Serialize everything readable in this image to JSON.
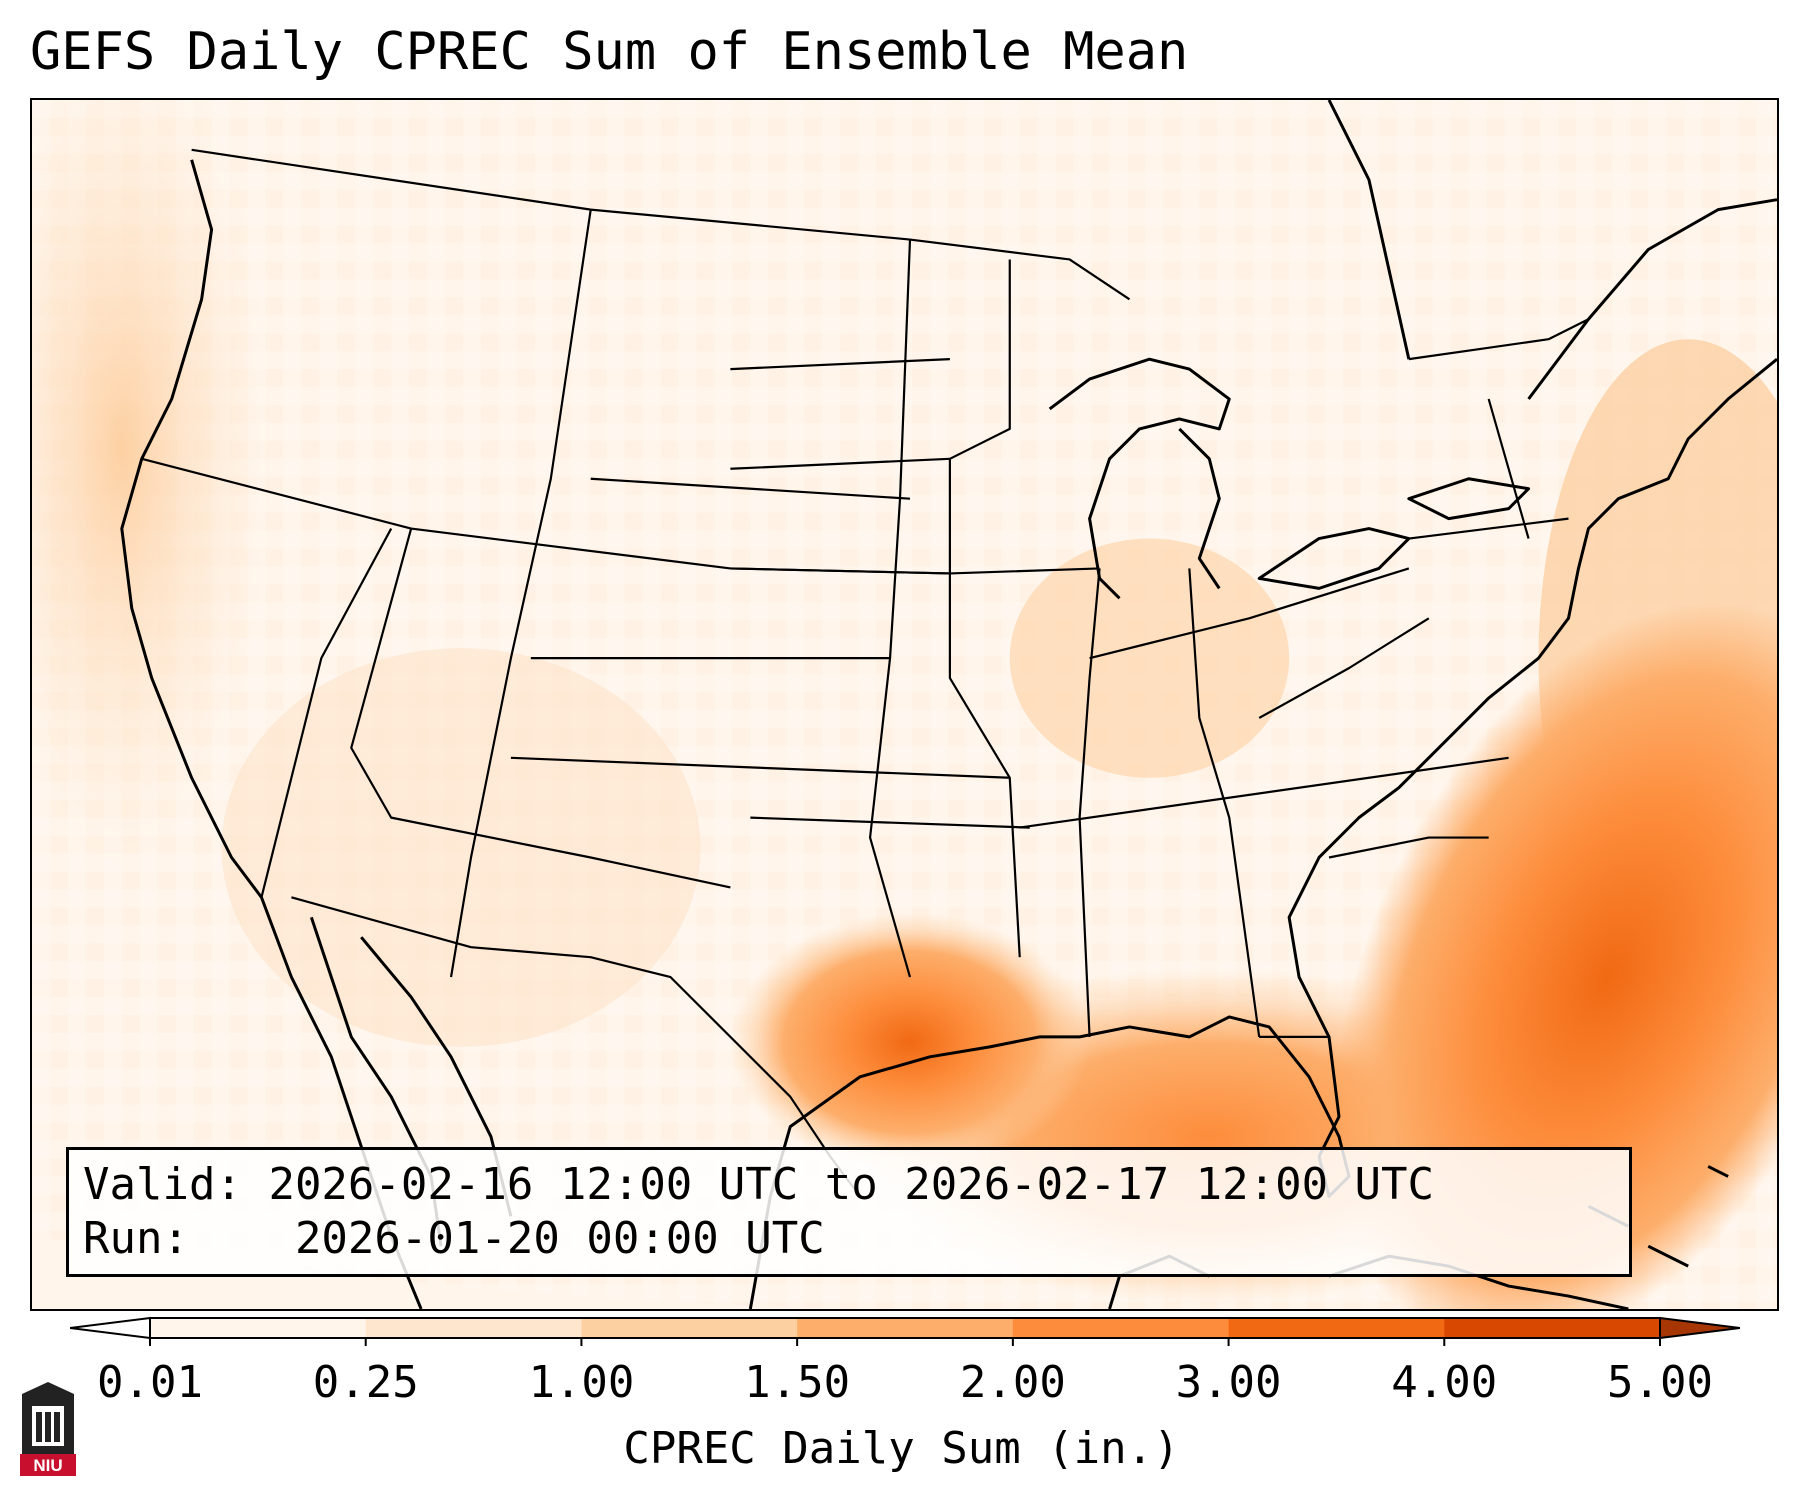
{
  "title": "GEFS Daily CPREC Sum of Ensemble Mean",
  "info": {
    "valid_label": "Valid:",
    "valid_value": "2026-02-16 12:00 UTC to 2026-02-17 12:00 UTC",
    "run_label": "Run:",
    "run_value": "2026-01-20 00:00 UTC"
  },
  "colorbar": {
    "label": "CPREC Daily Sum (in.)",
    "ticks": [
      "0.01",
      "0.25",
      "1.00",
      "1.50",
      "2.00",
      "3.00",
      "4.00",
      "5.00"
    ],
    "colors": [
      "#fff5eb",
      "#fee6ce",
      "#fdd0a2",
      "#fdae6b",
      "#fd8d3c",
      "#f16913",
      "#d94801"
    ],
    "over_color": "#a63603",
    "under_color": "#ffffff"
  },
  "logo": {
    "text": "NIU",
    "color": "#c8102e"
  },
  "map": {
    "projection": "lambert-conformal",
    "features": [
      "coastlines",
      "country-borders",
      "state-borders"
    ],
    "precip_maxima": [
      {
        "region": "Gulf Stream off Southeast US coast",
        "category": "3.00-4.00"
      },
      {
        "region": "Central Texas",
        "category": "3.00-4.00"
      },
      {
        "region": "Northern Gulf of Mexico",
        "category": "2.00-3.00"
      }
    ]
  }
}
